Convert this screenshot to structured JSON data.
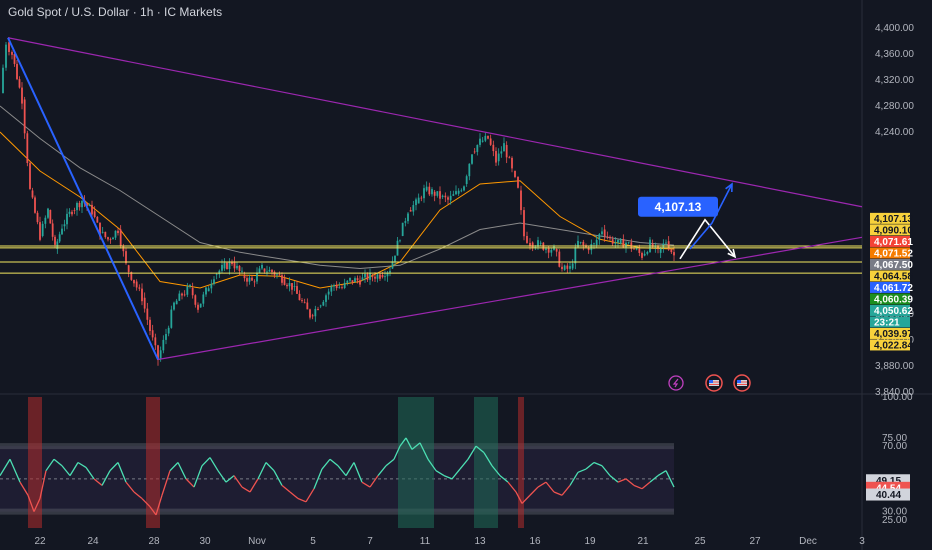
{
  "header": {
    "title": "Gold Spot / U.S. Dollar · 1h · IC Markets"
  },
  "colors": {
    "background": "#131722",
    "up": "#26a69a",
    "down": "#ef5350",
    "triangle": "#9c27b0",
    "level_line": "#f5e960",
    "impulse": "#2962ff",
    "ma_slow": "#8a8a8a",
    "ma_fast": "#ff9800",
    "rsi_line": "#4ce0b3",
    "target_box": "#2962ff"
  },
  "chart_data": [
    {
      "type": "candlestick",
      "name": "price",
      "y_ticks": [
        "4,400.00",
        "4,360.00",
        "4,320.00",
        "4,280.00",
        "4,240.00",
        "3,960.00",
        "3,920.00",
        "3,880.00",
        "3,840.00"
      ],
      "ylim": [
        3840,
        4400
      ],
      "x_ticks": [
        "22",
        "24",
        "28",
        "30",
        "Nov",
        "5",
        "7",
        "11",
        "13",
        "16",
        "19",
        "21",
        "25",
        "27",
        "Dec",
        "3"
      ],
      "path": [
        [
          0,
          4300
        ],
        [
          6,
          4378
        ],
        [
          12,
          4360
        ],
        [
          22,
          4290
        ],
        [
          30,
          4150
        ],
        [
          40,
          4080
        ],
        [
          48,
          4120
        ],
        [
          55,
          4060
        ],
        [
          62,
          4095
        ],
        [
          72,
          4120
        ],
        [
          82,
          4135
        ],
        [
          92,
          4118
        ],
        [
          100,
          4085
        ],
        [
          108,
          4075
        ],
        [
          118,
          4090
        ],
        [
          126,
          4035
        ],
        [
          134,
          4010
        ],
        [
          142,
          3985
        ],
        [
          150,
          3935
        ],
        [
          158,
          3890
        ],
        [
          166,
          3930
        ],
        [
          174,
          3975
        ],
        [
          182,
          3990
        ],
        [
          190,
          4000
        ],
        [
          198,
          3970
        ],
        [
          206,
          3995
        ],
        [
          214,
          4020
        ],
        [
          222,
          4030
        ],
        [
          232,
          4040
        ],
        [
          242,
          4020
        ],
        [
          252,
          4010
        ],
        [
          262,
          4030
        ],
        [
          272,
          4025
        ],
        [
          282,
          4015
        ],
        [
          292,
          4002
        ],
        [
          302,
          3978
        ],
        [
          310,
          3958
        ],
        [
          318,
          3972
        ],
        [
          326,
          3990
        ],
        [
          334,
          4005
        ],
        [
          342,
          4000
        ],
        [
          350,
          4012
        ],
        [
          360,
          4012
        ],
        [
          370,
          4018
        ],
        [
          380,
          4020
        ],
        [
          390,
          4030
        ],
        [
          400,
          4080
        ],
        [
          408,
          4120
        ],
        [
          416,
          4130
        ],
        [
          424,
          4150
        ],
        [
          432,
          4148
        ],
        [
          440,
          4140
        ],
        [
          448,
          4135
        ],
        [
          456,
          4145
        ],
        [
          464,
          4160
        ],
        [
          472,
          4210
        ],
        [
          480,
          4225
        ],
        [
          488,
          4230
        ],
        [
          496,
          4195
        ],
        [
          504,
          4220
        ],
        [
          512,
          4180
        ],
        [
          518,
          4150
        ],
        [
          524,
          4080
        ],
        [
          530,
          4070
        ],
        [
          538,
          4068
        ],
        [
          546,
          4062
        ],
        [
          554,
          4060
        ],
        [
          562,
          4028
        ],
        [
          570,
          4030
        ],
        [
          578,
          4070
        ],
        [
          586,
          4062
        ],
        [
          594,
          4066
        ],
        [
          602,
          4090
        ],
        [
          610,
          4075
        ],
        [
          618,
          4068
        ],
        [
          626,
          4070
        ],
        [
          634,
          4060
        ],
        [
          642,
          4050
        ],
        [
          650,
          4068
        ],
        [
          658,
          4054
        ],
        [
          666,
          4072
        ],
        [
          674,
          4050
        ]
      ],
      "ma_fast_path": [
        [
          0,
          4240
        ],
        [
          40,
          4180
        ],
        [
          80,
          4140
        ],
        [
          120,
          4090
        ],
        [
          160,
          4010
        ],
        [
          200,
          4000
        ],
        [
          240,
          4020
        ],
        [
          280,
          4018
        ],
        [
          320,
          4000
        ],
        [
          360,
          4010
        ],
        [
          400,
          4040
        ],
        [
          440,
          4120
        ],
        [
          480,
          4160
        ],
        [
          520,
          4165
        ],
        [
          560,
          4110
        ],
        [
          600,
          4075
        ],
        [
          640,
          4062
        ],
        [
          674,
          4060
        ]
      ],
      "ma_slow_path": [
        [
          0,
          4280
        ],
        [
          40,
          4230
        ],
        [
          80,
          4185
        ],
        [
          120,
          4150
        ],
        [
          160,
          4110
        ],
        [
          200,
          4070
        ],
        [
          240,
          4055
        ],
        [
          280,
          4045
        ],
        [
          320,
          4035
        ],
        [
          360,
          4030
        ],
        [
          400,
          4035
        ],
        [
          440,
          4060
        ],
        [
          480,
          4090
        ],
        [
          520,
          4100
        ],
        [
          560,
          4090
        ],
        [
          600,
          4080
        ],
        [
          640,
          4070
        ],
        [
          674,
          4066
        ]
      ],
      "levels": [
        4064.58,
        4061.72,
        4039.97,
        4022.84
      ],
      "triangle_upper": [
        [
          8,
          4385
        ],
        [
          862,
          4125
        ]
      ],
      "triangle_lower": [
        [
          158,
          3890
        ],
        [
          862,
          4078
        ]
      ],
      "impulse_line": [
        [
          8,
          4385
        ],
        [
          158,
          3890
        ]
      ],
      "projection_points": [
        [
          680,
          4045
        ],
        [
          705,
          4105
        ],
        [
          735,
          4048
        ]
      ],
      "projection_alt": [
        [
          690,
          4060
        ],
        [
          712,
          4100
        ],
        [
          732,
          4160
        ]
      ],
      "target_label": "4,107.13",
      "price_labels": [
        {
          "text": "4,107.13",
          "bg": "#f7d13c",
          "fg": "#131722",
          "value": 4107.13
        },
        {
          "text": "4,090.10",
          "bg": "#f7d13c",
          "fg": "#131722",
          "value": 4090.1
        },
        {
          "text": "4,071.61",
          "bg": "#f44336",
          "fg": "#ffffff",
          "value": 4071.61
        },
        {
          "text": "4,071.52",
          "bg": "#f57c00",
          "fg": "#ffffff",
          "value": 4071.52
        },
        {
          "text": "4,067.50",
          "bg": "#787b86",
          "fg": "#ffffff",
          "value": 4067.5
        },
        {
          "text": "4,064.58",
          "bg": "#f7d13c",
          "fg": "#131722",
          "value": 4064.58
        },
        {
          "text": "4,061.72",
          "bg": "#2962ff",
          "fg": "#ffffff",
          "value": 4061.72
        },
        {
          "text": "4,060.39",
          "bg": "#1b8e1f",
          "fg": "#ffffff",
          "value": 4060.39
        },
        {
          "text": "4,050.62",
          "bg": "#26a69a",
          "fg": "#ffffff",
          "value": 4050.62
        },
        {
          "text": "23:21",
          "bg": "#26a69a",
          "fg": "#ffffff",
          "value": 4046.5
        },
        {
          "text": "4,039.97",
          "bg": "#f7d13c",
          "fg": "#131722",
          "value": 4039.97
        },
        {
          "text": "4,022.84",
          "bg": "#f7d13c",
          "fg": "#131722",
          "value": 4022.84
        }
      ]
    },
    {
      "type": "line",
      "name": "rsi",
      "y_ticks": [
        "100.00",
        "75.00",
        "70.00",
        "50.00",
        "40.44",
        "30.00",
        "25.00"
      ],
      "ylim": [
        20,
        100
      ],
      "band": [
        30,
        70
      ],
      "rsi_path": [
        [
          0,
          52
        ],
        [
          10,
          62
        ],
        [
          20,
          48
        ],
        [
          28,
          40
        ],
        [
          34,
          30
        ],
        [
          40,
          38
        ],
        [
          46,
          55
        ],
        [
          54,
          62
        ],
        [
          62,
          58
        ],
        [
          70,
          52
        ],
        [
          78,
          60
        ],
        [
          86,
          57
        ],
        [
          94,
          50
        ],
        [
          102,
          46
        ],
        [
          110,
          55
        ],
        [
          118,
          60
        ],
        [
          126,
          48
        ],
        [
          134,
          42
        ],
        [
          142,
          38
        ],
        [
          150,
          33
        ],
        [
          156,
          28
        ],
        [
          162,
          40
        ],
        [
          170,
          55
        ],
        [
          178,
          60
        ],
        [
          186,
          50
        ],
        [
          194,
          45
        ],
        [
          202,
          58
        ],
        [
          210,
          63
        ],
        [
          218,
          55
        ],
        [
          226,
          48
        ],
        [
          234,
          52
        ],
        [
          242,
          45
        ],
        [
          250,
          42
        ],
        [
          258,
          50
        ],
        [
          266,
          60
        ],
        [
          274,
          55
        ],
        [
          282,
          46
        ],
        [
          290,
          42
        ],
        [
          298,
          38
        ],
        [
          306,
          36
        ],
        [
          314,
          44
        ],
        [
          322,
          56
        ],
        [
          330,
          62
        ],
        [
          338,
          58
        ],
        [
          346,
          52
        ],
        [
          354,
          60
        ],
        [
          362,
          48
        ],
        [
          370,
          45
        ],
        [
          378,
          52
        ],
        [
          386,
          58
        ],
        [
          394,
          62
        ],
        [
          400,
          70
        ],
        [
          406,
          75
        ],
        [
          412,
          68
        ],
        [
          420,
          72
        ],
        [
          428,
          62
        ],
        [
          436,
          55
        ],
        [
          444,
          52
        ],
        [
          452,
          50
        ],
        [
          460,
          56
        ],
        [
          468,
          62
        ],
        [
          476,
          70
        ],
        [
          484,
          66
        ],
        [
          492,
          58
        ],
        [
          500,
          52
        ],
        [
          508,
          48
        ],
        [
          516,
          42
        ],
        [
          522,
          35
        ],
        [
          530,
          40
        ],
        [
          538,
          45
        ],
        [
          546,
          48
        ],
        [
          554,
          42
        ],
        [
          562,
          40
        ],
        [
          570,
          46
        ],
        [
          578,
          54
        ],
        [
          586,
          56
        ],
        [
          594,
          60
        ],
        [
          602,
          58
        ],
        [
          610,
          52
        ],
        [
          618,
          48
        ],
        [
          626,
          50
        ],
        [
          634,
          46
        ],
        [
          642,
          44
        ],
        [
          650,
          48
        ],
        [
          658,
          52
        ],
        [
          666,
          55
        ],
        [
          674,
          45
        ]
      ],
      "shaded_bands": [
        {
          "x0": 28,
          "x1": 42,
          "color": "#b22c2c"
        },
        {
          "x0": 146,
          "x1": 160,
          "color": "#b22c2c"
        },
        {
          "x0": 398,
          "x1": 434,
          "color": "#1f6b57"
        },
        {
          "x0": 474,
          "x1": 498,
          "color": "#1f6b57"
        },
        {
          "x0": 518,
          "x1": 524,
          "color": "#b22c2c"
        }
      ],
      "value_labels": [
        {
          "text": "49.15",
          "bg": "#d1d4dc",
          "fg": "#131722",
          "value": 49.15
        },
        {
          "text": "44.54",
          "bg": "#ef5350",
          "fg": "#ffffff",
          "value": 44.54
        },
        {
          "text": "40.44",
          "bg": "#d1d4dc",
          "fg": "#131722",
          "value": 40.44
        }
      ]
    }
  ]
}
